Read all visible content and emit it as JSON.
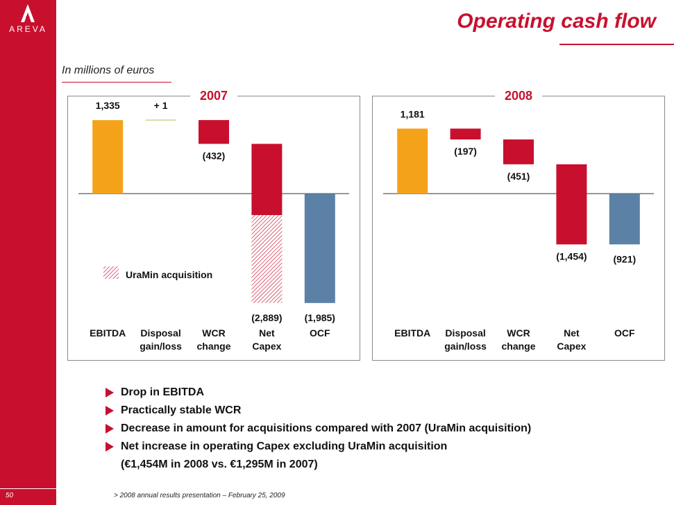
{
  "brand": {
    "name": "AREVA",
    "color": "#c8102e"
  },
  "title": "Operating cash flow",
  "subtitle": "In millions of euros",
  "colors": {
    "ebitda": "#f5a21b",
    "red": "#c8102e",
    "ocf": "#5b82a6",
    "disposal_line": "#c8d68a"
  },
  "chart_data": [
    {
      "type": "bar",
      "subtype": "waterfall",
      "title": "2007",
      "categories": [
        "EBITDA",
        "Disposal gain/loss",
        "WCR change",
        "Net Capex",
        "OCF"
      ],
      "category_labels": [
        [
          "EBITDA"
        ],
        [
          "Disposal",
          "gain/loss"
        ],
        [
          "WCR",
          "change"
        ],
        [
          "Net",
          "Capex"
        ],
        [
          "OCF"
        ]
      ],
      "values": [
        1335,
        1,
        -432,
        -2889,
        -1985
      ],
      "value_labels": [
        "1,335",
        "+ 1",
        "(432)",
        "(2,889)",
        "(1,985)"
      ],
      "hatched_part": {
        "category": "Net Capex",
        "value": -1594
      },
      "legend": "UraMin acquisition",
      "ylim": [
        -2000,
        1400
      ]
    },
    {
      "type": "bar",
      "subtype": "waterfall",
      "title": "2008",
      "categories": [
        "EBITDA",
        "Disposal gain/loss",
        "WCR change",
        "Net Capex",
        "OCF"
      ],
      "category_labels": [
        [
          "EBITDA"
        ],
        [
          "Disposal",
          "gain/loss"
        ],
        [
          "WCR",
          "change"
        ],
        [
          "Net",
          "Capex"
        ],
        [
          "OCF"
        ]
      ],
      "values": [
        1181,
        -197,
        -451,
        -1454,
        -921
      ],
      "value_labels": [
        "1,181",
        "(197)",
        "(451)",
        "(1,454)",
        "(921)"
      ],
      "ylim": [
        -2000,
        1400
      ]
    }
  ],
  "bullets": [
    "Drop in EBITDA",
    "Practically stable WCR",
    "Decrease in amount for acquisitions compared with 2007 (UraMin acquisition)",
    "Net increase in operating Capex excluding UraMin acquisition"
  ],
  "bullet_continuation": "(€1,454M in 2008 vs. €1,295M in 2007)",
  "footer": {
    "page": "50",
    "text": "> 2008 annual results presentation – February 25, 2009"
  }
}
